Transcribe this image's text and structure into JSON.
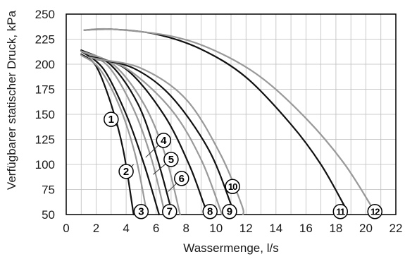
{
  "chart_data": {
    "type": "line",
    "title": "",
    "xlabel": "Wassermenge, l/s",
    "ylabel": "Verfügbarer statischer Druck, kPa",
    "xlim": [
      0,
      22
    ],
    "ylim": [
      50,
      250
    ],
    "x_ticks": [
      "0",
      "2",
      "4",
      "6",
      "8",
      "10",
      "12",
      "14",
      "16",
      "18",
      "20",
      "22"
    ],
    "y_ticks": [
      "50",
      "75",
      "100",
      "125",
      "150",
      "175",
      "200",
      "225",
      "250"
    ],
    "grid": true,
    "legend": "none",
    "series": [
      {
        "name": "1",
        "color": "#111111",
        "points": [
          [
            1.0,
            210
          ],
          [
            2.0,
            198
          ],
          [
            3.0,
            160
          ],
          [
            3.8,
            115
          ],
          [
            4.5,
            50
          ]
        ]
      },
      {
        "name": "2",
        "color": "#999999",
        "points": [
          [
            1.0,
            209
          ],
          [
            2.2,
            196
          ],
          [
            3.5,
            160
          ],
          [
            4.6,
            110
          ],
          [
            5.4,
            50
          ]
        ]
      },
      {
        "name": "3",
        "color": "#111111",
        "points": [
          [
            1.0,
            213
          ],
          [
            2.5,
            195
          ],
          [
            4.0,
            150
          ],
          [
            5.2,
            100
          ],
          [
            6.2,
            50
          ]
        ]
      },
      {
        "name": "4",
        "color": "#999999",
        "points": [
          [
            1.0,
            213
          ],
          [
            2.8,
            198
          ],
          [
            4.5,
            155
          ],
          [
            5.7,
            105
          ],
          [
            6.6,
            50
          ]
        ]
      },
      {
        "name": "5",
        "color": "#111111",
        "points": [
          [
            1.0,
            214
          ],
          [
            3.0,
            199
          ],
          [
            4.8,
            160
          ],
          [
            6.0,
            110
          ],
          [
            7.1,
            50
          ]
        ]
      },
      {
        "name": "6",
        "color": "#999999",
        "points": [
          [
            1.0,
            213
          ],
          [
            3.2,
            199
          ],
          [
            5.2,
            160
          ],
          [
            6.6,
            110
          ],
          [
            7.6,
            50
          ]
        ]
      },
      {
        "name": "7",
        "color": "#111111",
        "points": [
          [
            1.5,
            208
          ],
          [
            4.0,
            195
          ],
          [
            6.5,
            150
          ],
          [
            8.2,
            100
          ],
          [
            9.2,
            60
          ],
          [
            9.5,
            50
          ]
        ]
      },
      {
        "name": "8",
        "color": "#999999",
        "points": [
          [
            1.5,
            207
          ],
          [
            4.0,
            196
          ],
          [
            7.0,
            155
          ],
          [
            9.0,
            105
          ],
          [
            10.4,
            50
          ]
        ]
      },
      {
        "name": "9",
        "color": "#111111",
        "points": [
          [
            2.0,
            205
          ],
          [
            4.5,
            196
          ],
          [
            7.0,
            168
          ],
          [
            9.5,
            115
          ],
          [
            11.0,
            60
          ],
          [
            11.2,
            50
          ]
        ]
      },
      {
        "name": "10",
        "color": "#999999",
        "points": [
          [
            2.0,
            205
          ],
          [
            5.0,
            196
          ],
          [
            8.0,
            165
          ],
          [
            10.3,
            110
          ],
          [
            11.7,
            60
          ],
          [
            11.8,
            50
          ]
        ]
      },
      {
        "name": "11",
        "color": "#111111",
        "points": [
          [
            1.2,
            234
          ],
          [
            3.0,
            235
          ],
          [
            6.0,
            230
          ],
          [
            9.0,
            215
          ],
          [
            12.0,
            187
          ],
          [
            15.0,
            140
          ],
          [
            17.0,
            100
          ],
          [
            18.7,
            55
          ]
        ]
      },
      {
        "name": "12",
        "color": "#999999",
        "points": [
          [
            1.2,
            234
          ],
          [
            3.0,
            235
          ],
          [
            7.0,
            228
          ],
          [
            10.0,
            213
          ],
          [
            13.0,
            187
          ],
          [
            16.0,
            146
          ],
          [
            18.5,
            102
          ],
          [
            20.3,
            60
          ]
        ]
      }
    ],
    "annotations": [
      {
        "text": "1",
        "x": 3.0,
        "y": 145,
        "leader": [
          3.4,
          138
        ]
      },
      {
        "text": "2",
        "x": 4.0,
        "y": 93,
        "leader": [
          4.5,
          100
        ]
      },
      {
        "text": "3",
        "x": 5.0,
        "y": 53,
        "leader": null
      },
      {
        "text": "4",
        "x": 6.5,
        "y": 124,
        "leader": [
          5.3,
          107
        ]
      },
      {
        "text": "5",
        "x": 7.0,
        "y": 105,
        "leader": [
          5.8,
          90
        ]
      },
      {
        "text": "6",
        "x": 7.7,
        "y": 86,
        "leader": [
          6.8,
          73
        ]
      },
      {
        "text": "7",
        "x": 6.9,
        "y": 53,
        "leader": null
      },
      {
        "text": "8",
        "x": 9.6,
        "y": 53,
        "leader": null
      },
      {
        "text": "9",
        "x": 10.9,
        "y": 53,
        "leader": null
      },
      {
        "text": "10",
        "x": 11.1,
        "y": 78,
        "leader": null
      },
      {
        "text": "11",
        "x": 18.3,
        "y": 53,
        "leader": null
      },
      {
        "text": "12",
        "x": 20.6,
        "y": 53,
        "leader": null
      }
    ]
  }
}
